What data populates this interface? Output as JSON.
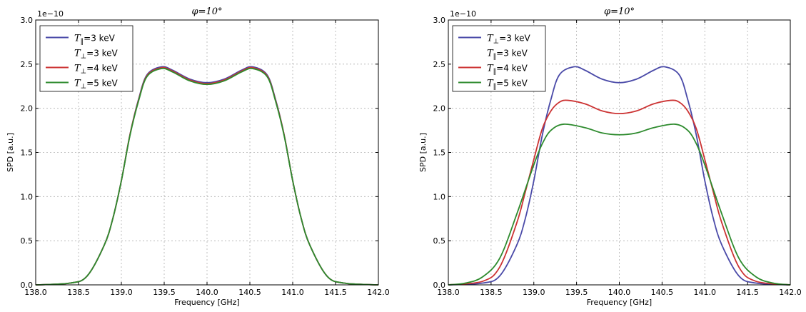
{
  "chart_data": [
    {
      "type": "line",
      "title": "φ=10°",
      "xlabel": "Frequency [GHz]",
      "ylabel": "SPD [a.u.]",
      "y_offset_label": "1e−10",
      "xlim": [
        138.0,
        142.0
      ],
      "ylim": [
        0.0,
        3.0
      ],
      "xticks": [
        "138.0",
        "138.5",
        "139.0",
        "139.5",
        "140.0",
        "140.5",
        "141.0",
        "141.5",
        "142.0"
      ],
      "yticks": [
        "0.0",
        "0.5",
        "1.0",
        "1.5",
        "2.0",
        "2.5",
        "3.0"
      ],
      "grid": true,
      "legend_position": "upper-left",
      "series": [
        {
          "name": "T‖=3 keV / T⊥=3 keV",
          "legend_lines": [
            "T‖=3 keV",
            "T⊥=3 keV"
          ],
          "color": "#4a4aa8",
          "x": [
            138.0,
            138.4,
            138.6,
            138.8,
            138.9,
            139.0,
            139.1,
            139.2,
            139.3,
            139.47,
            139.6,
            139.8,
            140.0,
            140.2,
            140.4,
            140.53,
            140.7,
            140.8,
            140.9,
            141.0,
            141.1,
            141.2,
            141.4,
            141.6,
            142.0
          ],
          "y": [
            0.0,
            0.02,
            0.1,
            0.45,
            0.75,
            1.18,
            1.7,
            2.1,
            2.38,
            2.47,
            2.43,
            2.33,
            2.29,
            2.33,
            2.43,
            2.47,
            2.38,
            2.1,
            1.7,
            1.18,
            0.75,
            0.45,
            0.1,
            0.02,
            0.0
          ]
        },
        {
          "name": "T⊥=4 keV",
          "legend_lines": [
            "T⊥=4 keV"
          ],
          "color": "#cc3333",
          "x": [
            138.0,
            138.4,
            138.6,
            138.8,
            138.9,
            139.0,
            139.1,
            139.2,
            139.3,
            139.47,
            139.6,
            139.8,
            140.0,
            140.2,
            140.4,
            140.53,
            140.7,
            140.8,
            140.9,
            141.0,
            141.1,
            141.2,
            141.4,
            141.6,
            142.0
          ],
          "y": [
            0.0,
            0.02,
            0.1,
            0.45,
            0.75,
            1.18,
            1.7,
            2.09,
            2.37,
            2.46,
            2.42,
            2.32,
            2.28,
            2.32,
            2.42,
            2.46,
            2.37,
            2.09,
            1.7,
            1.18,
            0.75,
            0.45,
            0.1,
            0.02,
            0.0
          ]
        },
        {
          "name": "T⊥=5 keV",
          "legend_lines": [
            "T⊥=5 keV"
          ],
          "color": "#2e8b2e",
          "x": [
            138.0,
            138.4,
            138.6,
            138.8,
            138.9,
            139.0,
            139.1,
            139.2,
            139.3,
            139.47,
            139.6,
            139.8,
            140.0,
            140.2,
            140.4,
            140.53,
            140.7,
            140.8,
            140.9,
            141.0,
            141.1,
            141.2,
            141.4,
            141.6,
            142.0
          ],
          "y": [
            0.0,
            0.02,
            0.1,
            0.45,
            0.75,
            1.18,
            1.69,
            2.08,
            2.36,
            2.45,
            2.41,
            2.31,
            2.27,
            2.31,
            2.41,
            2.45,
            2.36,
            2.08,
            1.69,
            1.18,
            0.75,
            0.45,
            0.1,
            0.02,
            0.0
          ]
        }
      ]
    },
    {
      "type": "line",
      "title": "φ=10°",
      "xlabel": "Frequency [GHz]",
      "ylabel": "SPD [a.u.]",
      "y_offset_label": "1e−10",
      "xlim": [
        138.0,
        142.0
      ],
      "ylim": [
        0.0,
        3.0
      ],
      "xticks": [
        "138.0",
        "138.5",
        "139.0",
        "139.5",
        "140.0",
        "140.5",
        "141.0",
        "141.5",
        "142.0"
      ],
      "yticks": [
        "0.0",
        "0.5",
        "1.0",
        "1.5",
        "2.0",
        "2.5",
        "3.0"
      ],
      "grid": true,
      "legend_position": "upper-left",
      "series": [
        {
          "name": "T⊥=3 keV / T‖=3 keV",
          "legend_lines": [
            "T⊥=3 keV",
            "T‖=3 keV"
          ],
          "color": "#4a4aa8",
          "x": [
            138.0,
            138.4,
            138.6,
            138.8,
            138.9,
            139.0,
            139.1,
            139.2,
            139.3,
            139.47,
            139.6,
            139.8,
            140.0,
            140.2,
            140.4,
            140.53,
            140.7,
            140.8,
            140.9,
            141.0,
            141.1,
            141.2,
            141.4,
            141.6,
            142.0
          ],
          "y": [
            0.0,
            0.02,
            0.1,
            0.45,
            0.75,
            1.18,
            1.7,
            2.1,
            2.38,
            2.47,
            2.43,
            2.33,
            2.29,
            2.33,
            2.43,
            2.47,
            2.38,
            2.1,
            1.7,
            1.18,
            0.75,
            0.45,
            0.1,
            0.02,
            0.0
          ]
        },
        {
          "name": "T‖=4 keV",
          "legend_lines": [
            "T‖=4 keV"
          ],
          "color": "#cc3333",
          "x": [
            138.0,
            138.4,
            138.6,
            138.8,
            138.9,
            139.0,
            139.1,
            139.2,
            139.3,
            139.4,
            139.6,
            139.8,
            140.0,
            140.2,
            140.4,
            140.6,
            140.7,
            140.8,
            140.9,
            141.0,
            141.1,
            141.2,
            141.4,
            141.6,
            142.0
          ],
          "y": [
            0.0,
            0.04,
            0.2,
            0.7,
            1.05,
            1.42,
            1.77,
            1.97,
            2.07,
            2.09,
            2.05,
            1.97,
            1.94,
            1.97,
            2.05,
            2.09,
            2.07,
            1.97,
            1.77,
            1.42,
            1.05,
            0.7,
            0.2,
            0.04,
            0.0
          ]
        },
        {
          "name": "T‖=5 keV",
          "legend_lines": [
            "T‖=5 keV"
          ],
          "color": "#2e8b2e",
          "x": [
            138.0,
            138.2,
            138.4,
            138.6,
            138.8,
            139.0,
            139.1,
            139.2,
            139.35,
            139.6,
            139.8,
            140.0,
            140.2,
            140.4,
            140.65,
            140.8,
            140.9,
            141.0,
            141.2,
            141.4,
            141.6,
            141.8,
            142.0
          ],
          "y": [
            0.0,
            0.02,
            0.09,
            0.3,
            0.8,
            1.36,
            1.6,
            1.75,
            1.82,
            1.78,
            1.72,
            1.7,
            1.72,
            1.78,
            1.82,
            1.75,
            1.6,
            1.36,
            0.8,
            0.3,
            0.09,
            0.02,
            0.0
          ]
        }
      ]
    }
  ]
}
